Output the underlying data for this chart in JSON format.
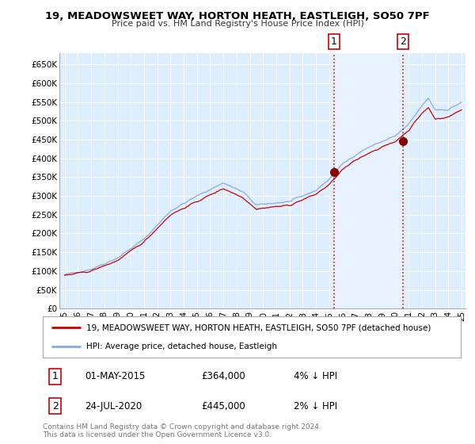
{
  "title": "19, MEADOWSWEET WAY, HORTON HEATH, EASTLEIGH, SO50 7PF",
  "subtitle": "Price paid vs. HM Land Registry's House Price Index (HPI)",
  "ylabel_ticks": [
    "£0",
    "£50K",
    "£100K",
    "£150K",
    "£200K",
    "£250K",
    "£300K",
    "£350K",
    "£400K",
    "£450K",
    "£500K",
    "£550K",
    "£600K",
    "£650K"
  ],
  "ytick_values": [
    0,
    50000,
    100000,
    150000,
    200000,
    250000,
    300000,
    350000,
    400000,
    450000,
    500000,
    550000,
    600000,
    650000
  ],
  "ylim": [
    0,
    680000
  ],
  "xlim_start": 1994.6,
  "xlim_end": 2025.3,
  "xtick_years": [
    1995,
    1996,
    1997,
    1998,
    1999,
    2000,
    2001,
    2002,
    2003,
    2004,
    2005,
    2006,
    2007,
    2008,
    2009,
    2010,
    2011,
    2012,
    2013,
    2014,
    2015,
    2016,
    2017,
    2018,
    2019,
    2020,
    2021,
    2022,
    2023,
    2024,
    2025
  ],
  "sale1_x": 2015.37,
  "sale1_y": 364000,
  "sale2_x": 2020.56,
  "sale2_y": 445000,
  "sale1_info": [
    "1",
    "01-MAY-2015",
    "£364,000",
    "4% ↓ HPI"
  ],
  "sale2_info": [
    "2",
    "24-JUL-2020",
    "£445,000",
    "2% ↓ HPI"
  ],
  "legend_line1": "19, MEADOWSWEET WAY, HORTON HEATH, EASTLEIGH, SO50 7PF (detached house)",
  "legend_line2": "HPI: Average price, detached house, Eastleigh",
  "copyright": "Contains HM Land Registry data © Crown copyright and database right 2024.\nThis data is licensed under the Open Government Licence v3.0.",
  "line_color_red": "#cc0000",
  "line_color_blue": "#88aadd",
  "bg_color": "#ddeeff",
  "shaded_bg": "#e8f2ff",
  "grid_color": "#ffffff",
  "annotation_box_color": "#cc0000",
  "vline_color": "#cc0000",
  "hatch_color": "#cccccc"
}
